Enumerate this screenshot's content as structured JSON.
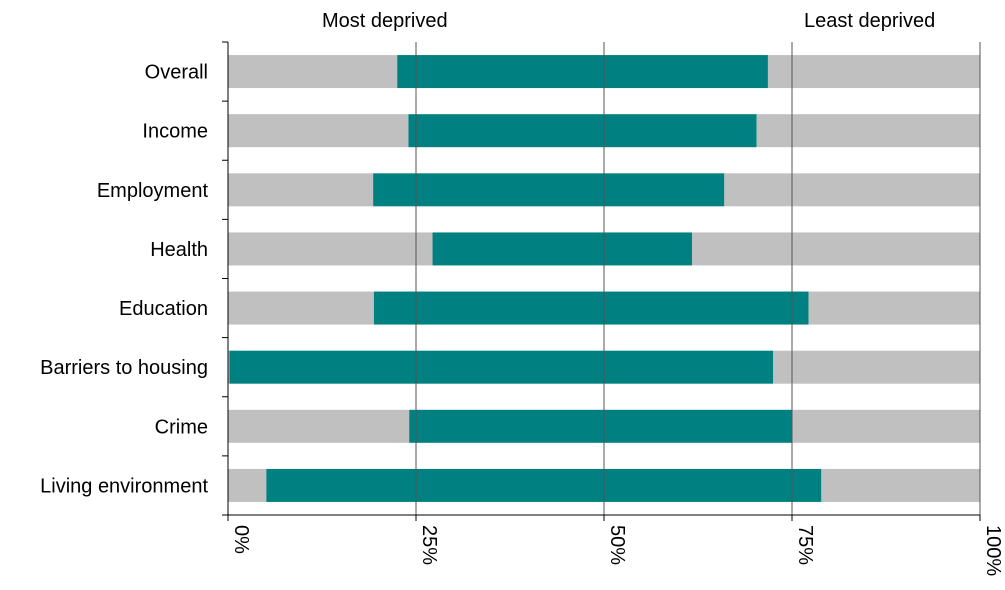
{
  "chart_data": {
    "type": "bar",
    "stacked": true,
    "orientation": "horizontal",
    "title": "",
    "header_left": "Most deprived",
    "header_right": "Least deprived",
    "categories": [
      "Overall",
      "Income",
      "Employment",
      "Health",
      "Education",
      "Barriers to housing",
      "Crime",
      "Living environment"
    ],
    "series": [
      {
        "values": [
          22.5,
          24,
          19.3,
          27.2,
          19.4,
          0.2,
          24.1,
          5.1
        ],
        "color": "#c0c0c0"
      },
      {
        "values": [
          49.3,
          46.3,
          46.7,
          34.5,
          57.8,
          72.3,
          50.9,
          73.8
        ],
        "color": "#008080"
      },
      {
        "values": [
          28.2,
          29.7,
          34,
          38.3,
          22.8,
          27.5,
          25,
          21.1
        ],
        "color": "#c0c0c0"
      }
    ],
    "xlim": [
      0,
      100
    ],
    "x_ticks": [
      0,
      25,
      50,
      75,
      100
    ],
    "x_tick_labels": [
      "0%",
      "25%",
      "50%",
      "75%",
      "100%"
    ],
    "grid": "vertical lines at ticks",
    "legend": "none"
  }
}
